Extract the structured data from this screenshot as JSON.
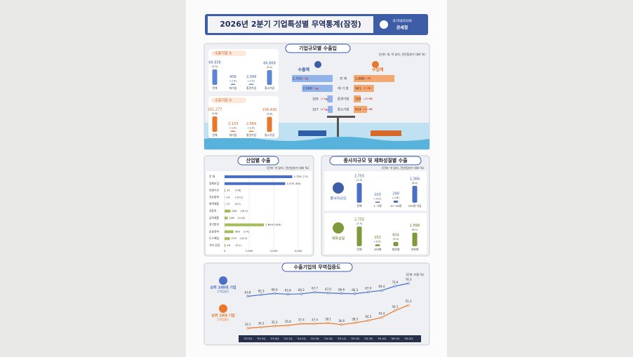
{
  "header": {
    "title": "2026년 2분기 기업특성별 무역통계(잠정)",
    "agency_top": "국가데이터처",
    "agency": "관세청"
  },
  "company_size": {
    "title": "기업규모별 수출입",
    "unit": "(단위: 개, 억 달러, 전년동분기 대비 %)",
    "exporters": {
      "label": "수출기업 수",
      "categories": [
        "전체",
        "대기업",
        "중견기업",
        "중소기업"
      ],
      "values": [
        69936,
        906,
        2099,
        66668
      ],
      "value_labels": [
        "69,936",
        "906",
        "2,099",
        "66,668"
      ],
      "changes": [
        "(3.0)",
        "(-1.4)",
        "(-1.5)",
        "(3.2)"
      ]
    },
    "importers": {
      "label": "수입기업 수",
      "categories": [
        "전체",
        "대기업",
        "중견기업",
        "중소기업"
      ],
      "values": [
        161277,
        3133,
        2584,
        156430
      ],
      "value_labels": [
        "161,277",
        "3,133",
        "2,584",
        "156,430"
      ],
      "changes": [
        "(3.8)",
        "(-1.4)",
        "(-1.5)",
        "(3.9)"
      ]
    },
    "rows": [
      "전 체",
      "대 기 업",
      "중견기업",
      "중소기업"
    ],
    "exports": {
      "label": "수출액",
      "values": [
        2755,
        2069,
        359,
        327
      ],
      "value_labels": [
        "2,755",
        "2,069",
        "359",
        "327"
      ],
      "changes": [
        "(7.3▲)",
        "(7.6▲)",
        "(3.6▲)",
        "(8.5▲)"
      ]
    },
    "imports": {
      "label": "수입액",
      "values": [
        1888,
        941,
        328,
        619
      ],
      "value_labels": [
        "1,888",
        "941",
        "328",
        "619"
      ],
      "changes": [
        "(3.4▼)",
        "(5.2▼)",
        "(18.0▼)",
        "(13.9▼)"
      ]
    }
  },
  "industry": {
    "title": "산업별 수출",
    "unit": "(단위: 억 달러, 전년동분기 대비 %)",
    "categories": [
      "전 체",
      "광제조업",
      "농림수산",
      "석유화학",
      "화학제품",
      "자동차",
      "금속제품",
      "전기전자",
      "운송장비",
      "도소매업",
      "기타 산업"
    ],
    "values": [
      2755,
      2470,
      31,
      14,
      13,
      240,
      128,
      1604,
      363,
      215,
      40
    ],
    "value_labels": [
      "2,755",
      "2,470",
      "31",
      "14",
      "13",
      "240",
      "128",
      "1,604",
      "363",
      "215",
      "40"
    ],
    "changes": [
      "(7.3)",
      "(8.8)",
      "(4.8)",
      "(-10.1)",
      "(0.3)",
      "(18.3)",
      "(11.8)",
      "(18.8)",
      "(7.4)",
      "(14.0)",
      "(0.1)"
    ],
    "xlim": [
      0,
      3000
    ],
    "xticks": [
      0,
      {
        "value": 1000,
        "label": "1,000"
      },
      {
        "value": 2000,
        "label": "2,000"
      },
      {
        "value": 3000,
        "label": "3,000"
      }
    ]
  },
  "workforce_goods": {
    "title": "종사자규모 및 재화성질별 수출",
    "unit": "(단위: 억 달러, 전년동분기 대비 %)",
    "workforce": {
      "label": "종사자규모",
      "categories": [
        "전체",
        "1~4명",
        "10~49명",
        "250명 이상"
      ],
      "values": [
        2755,
        103,
        299,
        2366
      ],
      "value_labels": [
        "2,755",
        "103",
        "299",
        "2,366"
      ],
      "changes": [
        "(7.3)",
        "(-3.5)",
        "(-1.8)",
        "(8.4)"
      ]
    },
    "goods": {
      "label": "재화성질",
      "categories": [
        "전체",
        "소비재",
        "원자재",
        "자본재"
      ],
      "values": [
        2755,
        253,
        604,
        1898
      ],
      "value_labels": [
        "2,755",
        "253",
        "604",
        "1,898"
      ],
      "changes": [
        "(7.3)",
        "(-0.5)",
        "(5.3)",
        "(8.1)"
      ]
    }
  },
  "concentration": {
    "title": "수출기업의 무역집중도",
    "unit": "(단위: 비중 %)",
    "categories": [
      "'23.2Q",
      "'23.3Q",
      "'23.4Q",
      "'24.1Q",
      "'24.2Q",
      "'24.3Q",
      "'24.4Q",
      "'25.1Q",
      "'25.2Q",
      "'25.3Q",
      "'25.4Q",
      "'26.1Q",
      "'26.2Q"
    ],
    "series": [
      {
        "name": "상위 100대 기업",
        "sub": "무역집중도",
        "color": "#4a6fc4",
        "values": [
          63.8,
          65.3,
          66.6,
          65.8,
          66.2,
          67.7,
          67.0,
          66.6,
          66.3,
          67.9,
          69.4,
          73.6,
          76.3
        ],
        "value_labels": [
          "63.8",
          "65.3",
          "66.6",
          "65.8",
          "66.2",
          "67.7",
          "67.0",
          "66.6",
          "66.3",
          "67.9",
          "69.4",
          "73.6",
          "76.3"
        ]
      },
      {
        "name": "상위 10대 기업",
        "sub": "무역집중도",
        "color": "#e8782c",
        "values": [
          33.1,
          34.2,
          35.2,
          35.8,
          37.4,
          37.4,
          38.1,
          36.6,
          38.3,
          40.5,
          43.4,
          50.1,
          55.3
        ],
        "value_labels": [
          "33.1",
          "34.2",
          "35.2",
          "35.8",
          "37.4",
          "37.4",
          "38.1",
          "36.6",
          "38.3",
          "40.5",
          "43.4",
          "50.1",
          "55.3"
        ]
      }
    ]
  }
}
